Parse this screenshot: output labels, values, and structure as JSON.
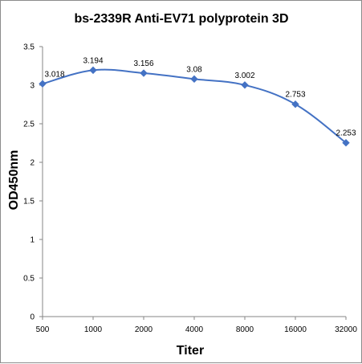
{
  "chart_data": {
    "type": "line",
    "title": "bs-2339R Anti-EV71 polyprotein 3D",
    "xlabel": "Titer",
    "ylabel": "OD450nm",
    "categories": [
      "500",
      "1000",
      "2000",
      "4000",
      "8000",
      "16000",
      "32000"
    ],
    "series": [
      {
        "values": [
          3.018,
          3.194,
          3.156,
          3.08,
          3.002,
          2.753,
          2.253
        ],
        "labels": [
          "3.018",
          "3.194",
          "3.156",
          "3.08",
          "3.002",
          "2.753",
          "2.253"
        ],
        "color": "#4472c4"
      }
    ],
    "ylim": [
      0,
      3.5
    ],
    "yticks": [
      "0",
      "0.5",
      "1",
      "1.5",
      "2",
      "2.5",
      "3",
      "3.5"
    ],
    "grid": false,
    "legend": "none"
  }
}
